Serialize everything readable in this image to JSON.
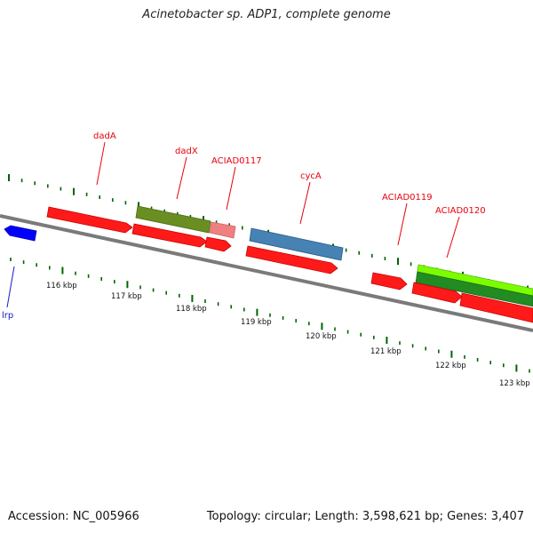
{
  "title": "Acinetobacter sp. ADP1, complete genome",
  "footer": {
    "accession": "Accession: NC_005966",
    "info": "Topology: circular; Length: 3,598,621 bp; Genes: 3,407"
  },
  "colors": {
    "backbone": "#7a7a7a",
    "cds": "#ff1a1a",
    "dadX": "#6b8e23",
    "acia0117": "#f08080",
    "cycA": "#4682b4",
    "lime": "#7cfc00",
    "green": "#228b22",
    "lrp": "#0000ff",
    "dot": "#006400",
    "label_forward": "#e8000b",
    "label_reverse": "#1a1acc"
  },
  "scale": {
    "ticks": [
      {
        "label": "116 kbp"
      },
      {
        "label": "117 kbp"
      },
      {
        "label": "118 kbp"
      },
      {
        "label": "119 kbp"
      },
      {
        "label": "120 kbp"
      },
      {
        "label": "121 kbp"
      },
      {
        "label": "122 kbp"
      },
      {
        "label": "123 kbp"
      }
    ]
  },
  "gene_labels": [
    {
      "name": "dadA"
    },
    {
      "name": "dadX"
    },
    {
      "name": "ACIAD0117"
    },
    {
      "name": "cycA"
    },
    {
      "name": "ACIAD0119"
    },
    {
      "name": "ACIAD0120"
    },
    {
      "name": "lrp"
    }
  ]
}
